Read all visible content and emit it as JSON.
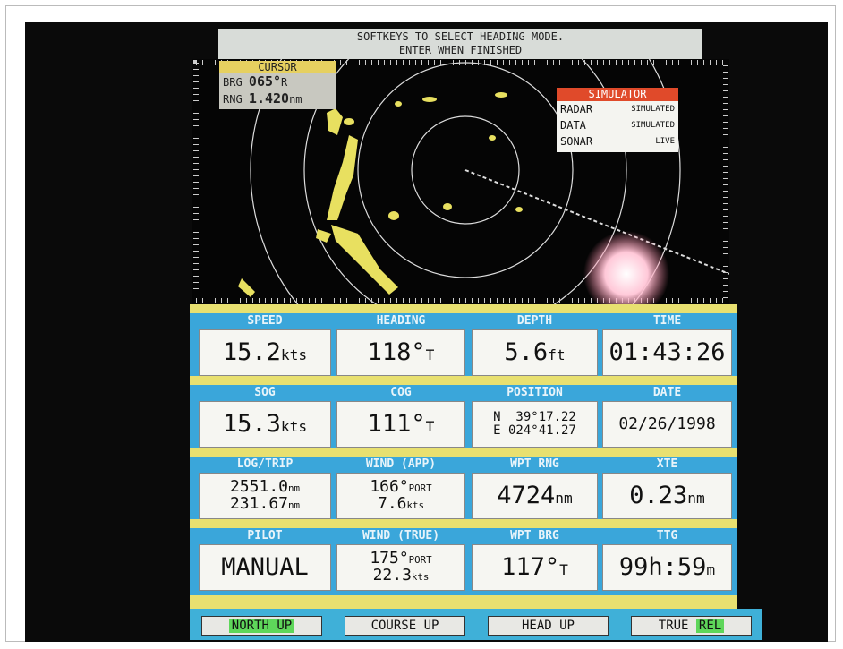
{
  "banner": [
    "SOFTKEYS TO SELECT HEADING MODE.",
    "ENTER WHEN FINISHED"
  ],
  "cursor": {
    "title": "CURSOR",
    "rows": [
      {
        "label": "BRG",
        "value": "065°",
        "unit": "R"
      },
      {
        "label": "RNG",
        "value": "1.420",
        "unit": "nm"
      }
    ]
  },
  "simulator": {
    "title": "SIMULATOR",
    "rows": [
      [
        "RADAR",
        "SIMULATED"
      ],
      [
        "DATA",
        "SIMULATED"
      ],
      [
        "SONAR",
        "LIVE"
      ]
    ]
  },
  "cells": [
    {
      "label": "SPEED",
      "lines": [
        {
          "value": "15.2",
          "unit": "kts"
        }
      ]
    },
    {
      "label": "HEADING",
      "lines": [
        {
          "value": "118°",
          "unit": "T"
        }
      ]
    },
    {
      "label": "DEPTH",
      "lines": [
        {
          "value": "5.6",
          "unit": "ft"
        }
      ]
    },
    {
      "label": "TIME",
      "lines": [
        {
          "value": "01:43:26"
        }
      ]
    },
    {
      "label": "SOG",
      "lines": [
        {
          "value": "15.3",
          "unit": "kts"
        }
      ]
    },
    {
      "label": "COG",
      "lines": [
        {
          "value": "111°",
          "unit": "T"
        }
      ]
    },
    {
      "label": "POSITION",
      "lines": [
        {
          "value": "N  39°17.22"
        },
        {
          "value": "E 024°41.27"
        }
      ]
    },
    {
      "label": "DATE",
      "lines": [
        {
          "value": "02/26/1998"
        }
      ]
    },
    {
      "label": "LOG/TRIP",
      "lines": [
        {
          "value": "2551.0",
          "unit": "nm"
        },
        {
          "value": "231.67",
          "unit": "nm"
        }
      ]
    },
    {
      "label": "WIND (APP)",
      "lines": [
        {
          "value": "166°",
          "unit": "PORT"
        },
        {
          "value": "7.6",
          "unit": "kts"
        }
      ]
    },
    {
      "label": "WPT RNG",
      "lines": [
        {
          "value": "4724",
          "unit": "nm"
        }
      ]
    },
    {
      "label": "XTE",
      "lines": [
        {
          "value": "0.23",
          "unit": "nm"
        }
      ]
    },
    {
      "label": "PILOT",
      "lines": [
        {
          "value": "MANUAL"
        }
      ]
    },
    {
      "label": "WIND (TRUE)",
      "lines": [
        {
          "value": "175°",
          "unit": "PORT"
        },
        {
          "value": "22.3",
          "unit": "kts"
        }
      ]
    },
    {
      "label": "WPT BRG",
      "lines": [
        {
          "value": "117°",
          "unit": "T"
        }
      ]
    },
    {
      "label": "TTG",
      "lines": [
        {
          "value": "99h:59",
          "unit": "m"
        }
      ]
    }
  ],
  "softkeys": [
    [
      {
        "text": "NORTH UP",
        "active": true
      }
    ],
    [
      {
        "text": "COURSE UP"
      }
    ],
    [
      {
        "text": "HEAD UP"
      }
    ],
    [
      {
        "text": "TRUE"
      },
      {
        "text": "REL",
        "active": true
      }
    ]
  ]
}
